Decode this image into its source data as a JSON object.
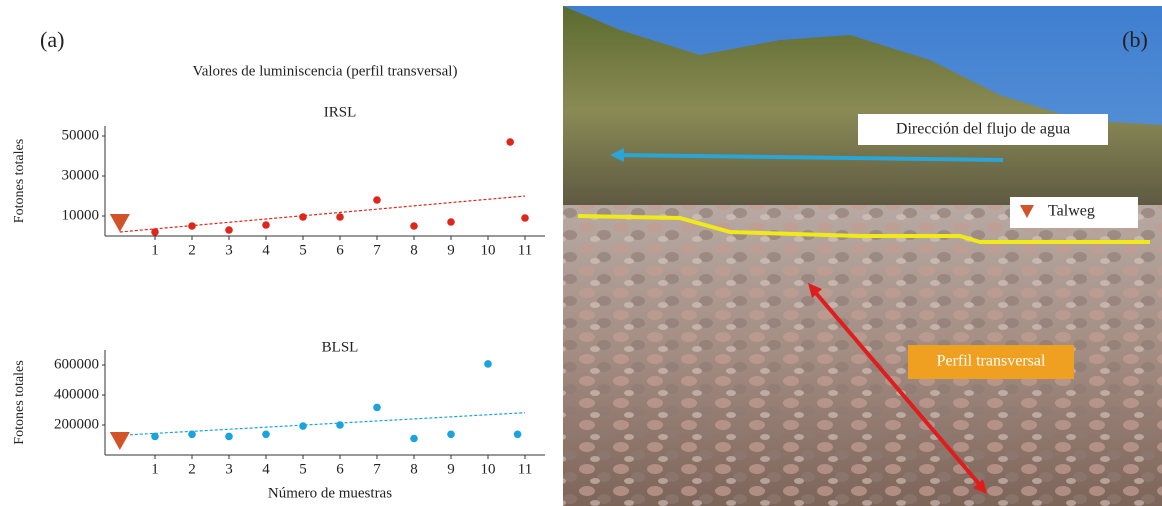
{
  "panel_labels": [
    "(a)",
    "(b)"
  ],
  "title": "Valores de luminiscencia (perfil transversal)",
  "xlabel": "Número de muestras",
  "chart_data": [
    {
      "type": "scatter",
      "title": "IRSL",
      "ylabel": "Fotones totales",
      "xlim": [
        0,
        11.6
      ],
      "xticks": [
        1,
        2,
        3,
        4,
        5,
        6,
        7,
        8,
        9,
        10,
        11
      ],
      "ylim": [
        0,
        55000
      ],
      "yticks": [
        10000,
        30000,
        50000
      ],
      "series": [
        {
          "color": "#e0261b",
          "marker": "circle",
          "x": [
            1,
            2,
            3,
            4,
            5,
            6,
            7,
            8,
            9,
            10.6,
            11
          ],
          "values": [
            2000,
            5000,
            3000,
            5500,
            9500,
            9500,
            18000,
            5000,
            7000,
            47000,
            9000
          ]
        },
        {
          "color": "#d2522a",
          "marker": "triangle",
          "x": [
            0.05
          ],
          "values": [
            7000
          ]
        }
      ],
      "trendline": {
        "color": "#e0261b",
        "x": [
          0.05,
          11
        ],
        "values": [
          2000,
          20000
        ]
      }
    },
    {
      "type": "scatter",
      "title": "BLSL",
      "ylabel": "Fotones totales",
      "xlim": [
        0,
        11.6
      ],
      "xticks": [
        1,
        2,
        3,
        4,
        5,
        6,
        7,
        8,
        9,
        10,
        11
      ],
      "ylim": [
        0,
        700000
      ],
      "yticks": [
        200000,
        400000,
        600000
      ],
      "series": [
        {
          "color": "#1aa3dc",
          "marker": "circle",
          "x": [
            1,
            2,
            3,
            4,
            5,
            6,
            7,
            8,
            9,
            10,
            10.8
          ],
          "values": [
            124000,
            138000,
            124000,
            138000,
            193000,
            200000,
            317000,
            110000,
            138000,
            607000,
            138000
          ]
        },
        {
          "color": "#d2522a",
          "marker": "triangle",
          "x": [
            0.05
          ],
          "values": [
            100000
          ]
        }
      ],
      "trendline": {
        "color": "#1aa3dc",
        "x": [
          0.05,
          11
        ],
        "values": [
          131000,
          282000
        ]
      }
    }
  ],
  "photo": {
    "flow_label": "Dirección del flujo de agua",
    "talweg_label": "Talweg",
    "profile_label": "Perfil transversal"
  }
}
